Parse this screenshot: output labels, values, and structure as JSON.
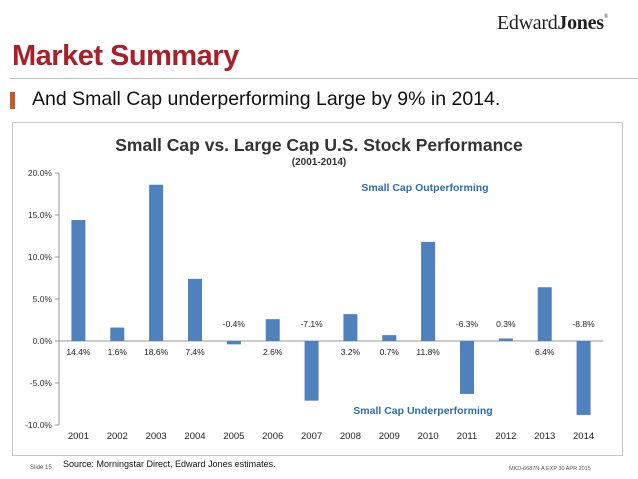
{
  "header": {
    "logo_part1": "Edward",
    "logo_part2": "Jones",
    "logo_reg": "®",
    "title": "Market Summary"
  },
  "bullet": "And Small Cap underperforming Large by 9% in 2014.",
  "colors": {
    "title": "#a8202a",
    "bar": "#4f81bd",
    "annotation": "#2e6db5",
    "bullet_mark": "#c25a2b"
  },
  "chart_data": {
    "type": "bar",
    "title": "Small Cap vs. Large Cap U.S. Stock Performance",
    "subtitle": "(2001-2014)",
    "xlabel": "",
    "ylabel": "",
    "categories": [
      "2001",
      "2002",
      "2003",
      "2004",
      "2005",
      "2006",
      "2007",
      "2008",
      "2009",
      "2010",
      "2011",
      "2012",
      "2013",
      "2014"
    ],
    "values": [
      14.4,
      1.6,
      18.6,
      7.4,
      -0.4,
      2.6,
      -7.1,
      3.2,
      0.7,
      11.8,
      -6.3,
      0.3,
      6.4,
      -8.8
    ],
    "data_labels": [
      "14.4%",
      "1.6%",
      "18.6%",
      "7.4%",
      "-0.4%",
      "2.6%",
      "-7.1%",
      "3.2%",
      "0.7%",
      "11.8%",
      "-6.3%",
      "0.3%",
      "6.4%",
      "-8.8%"
    ],
    "label_position": [
      "below",
      "below",
      "below",
      "below",
      "above",
      "below",
      "above",
      "below",
      "below",
      "below",
      "above",
      "above",
      "below",
      "above"
    ],
    "ylim": [
      -10,
      20
    ],
    "yticks": [
      20,
      15,
      10,
      5,
      0,
      -5,
      -10
    ],
    "ytick_labels": [
      "20.0%",
      "15.0%",
      "10.0%",
      "5.0%",
      "0.0%",
      "-5.0%",
      "-10.0%"
    ],
    "grid": false,
    "annotations": [
      "Small Cap Outperforming",
      "Small Cap Underperforming"
    ]
  },
  "footer": {
    "slide": "Slide 15",
    "source": "Source: Morningstar Direct, Edward Jones estimates.",
    "code": "MKD-6687N-A   EXP 30 APR 2015"
  }
}
